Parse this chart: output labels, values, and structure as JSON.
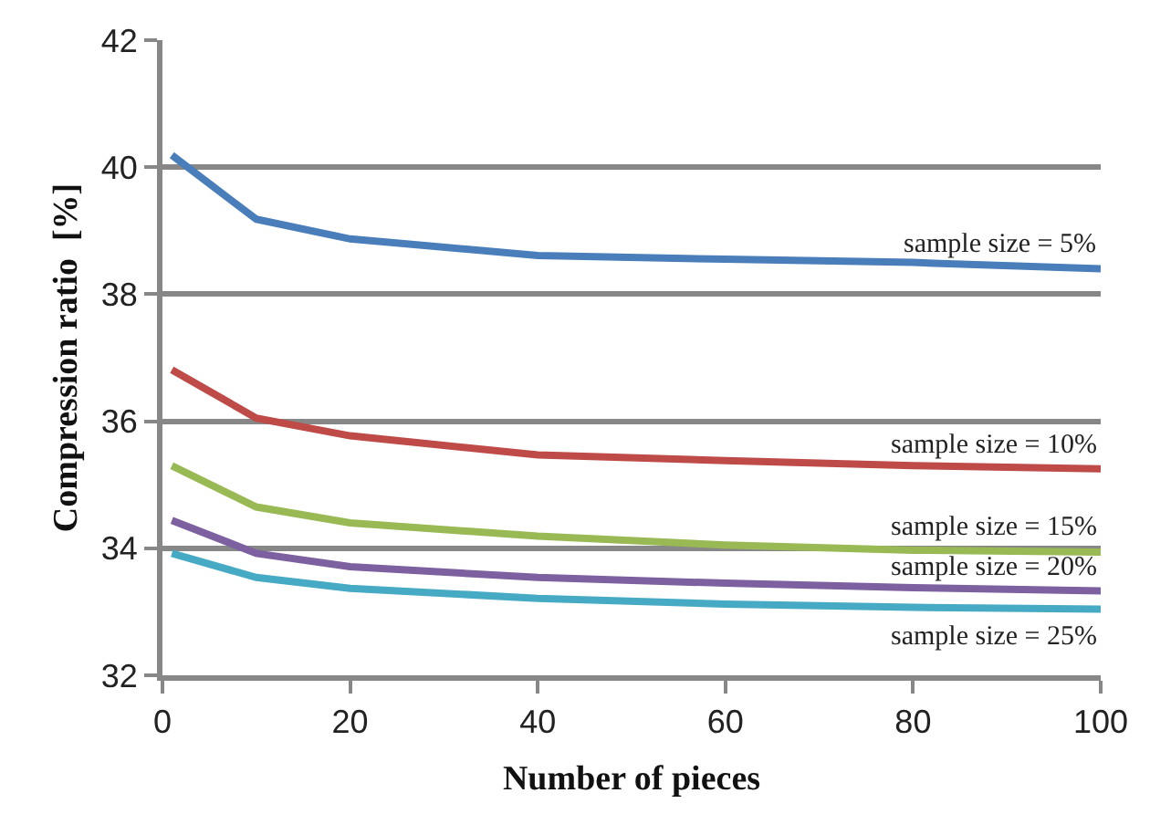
{
  "chart_data": {
    "type": "line",
    "xlabel": "Number of pieces",
    "ylabel": "Compression ratio  [%]",
    "x": [
      1,
      10,
      20,
      40,
      60,
      80,
      100
    ],
    "series": [
      {
        "name": "sample size = 5%",
        "color": "#4a7ebb",
        "values": [
          40.19,
          39.18,
          38.87,
          38.61,
          38.55,
          38.5,
          38.4
        ]
      },
      {
        "name": "sample size = 10%",
        "color": "#be4b48",
        "values": [
          36.81,
          36.05,
          35.77,
          35.47,
          35.38,
          35.3,
          35.25
        ]
      },
      {
        "name": "sample size = 15%",
        "color": "#98b954",
        "values": [
          35.3,
          34.65,
          34.4,
          34.19,
          34.05,
          33.97,
          33.94
        ]
      },
      {
        "name": "sample size = 20%",
        "color": "#7d60a0",
        "values": [
          34.44,
          33.92,
          33.71,
          33.54,
          33.45,
          33.38,
          33.33
        ]
      },
      {
        "name": "sample size = 25%",
        "color": "#46aac5",
        "values": [
          33.92,
          33.54,
          33.37,
          33.21,
          33.12,
          33.07,
          33.04
        ]
      }
    ],
    "xlim": [
      0,
      100
    ],
    "xticks": [
      0,
      20,
      40,
      60,
      80,
      100
    ],
    "ylim": [
      32,
      42
    ],
    "yticks": [
      32,
      34,
      36,
      38,
      40,
      42
    ],
    "grid": "y",
    "legend": false,
    "marker": "none",
    "line_style": "solid"
  }
}
